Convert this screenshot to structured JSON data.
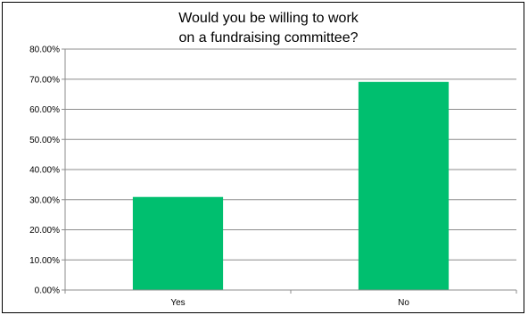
{
  "chart_data": {
    "type": "bar",
    "title_lines": [
      "Would you be willing to work",
      "on a fundraising committee?"
    ],
    "categories": [
      "Yes",
      "No"
    ],
    "values": [
      30.9,
      69.1
    ],
    "y_ticks": [
      "0.00%",
      "10.00%",
      "20.00%",
      "30.00%",
      "40.00%",
      "50.00%",
      "60.00%",
      "70.00%",
      "80.00%"
    ],
    "ylim": [
      0,
      80
    ],
    "grid": true,
    "legend": "none",
    "bar_color": "#00BF6F",
    "grid_color": "#8c8c8c",
    "axis_color": "#8c8c8c"
  }
}
